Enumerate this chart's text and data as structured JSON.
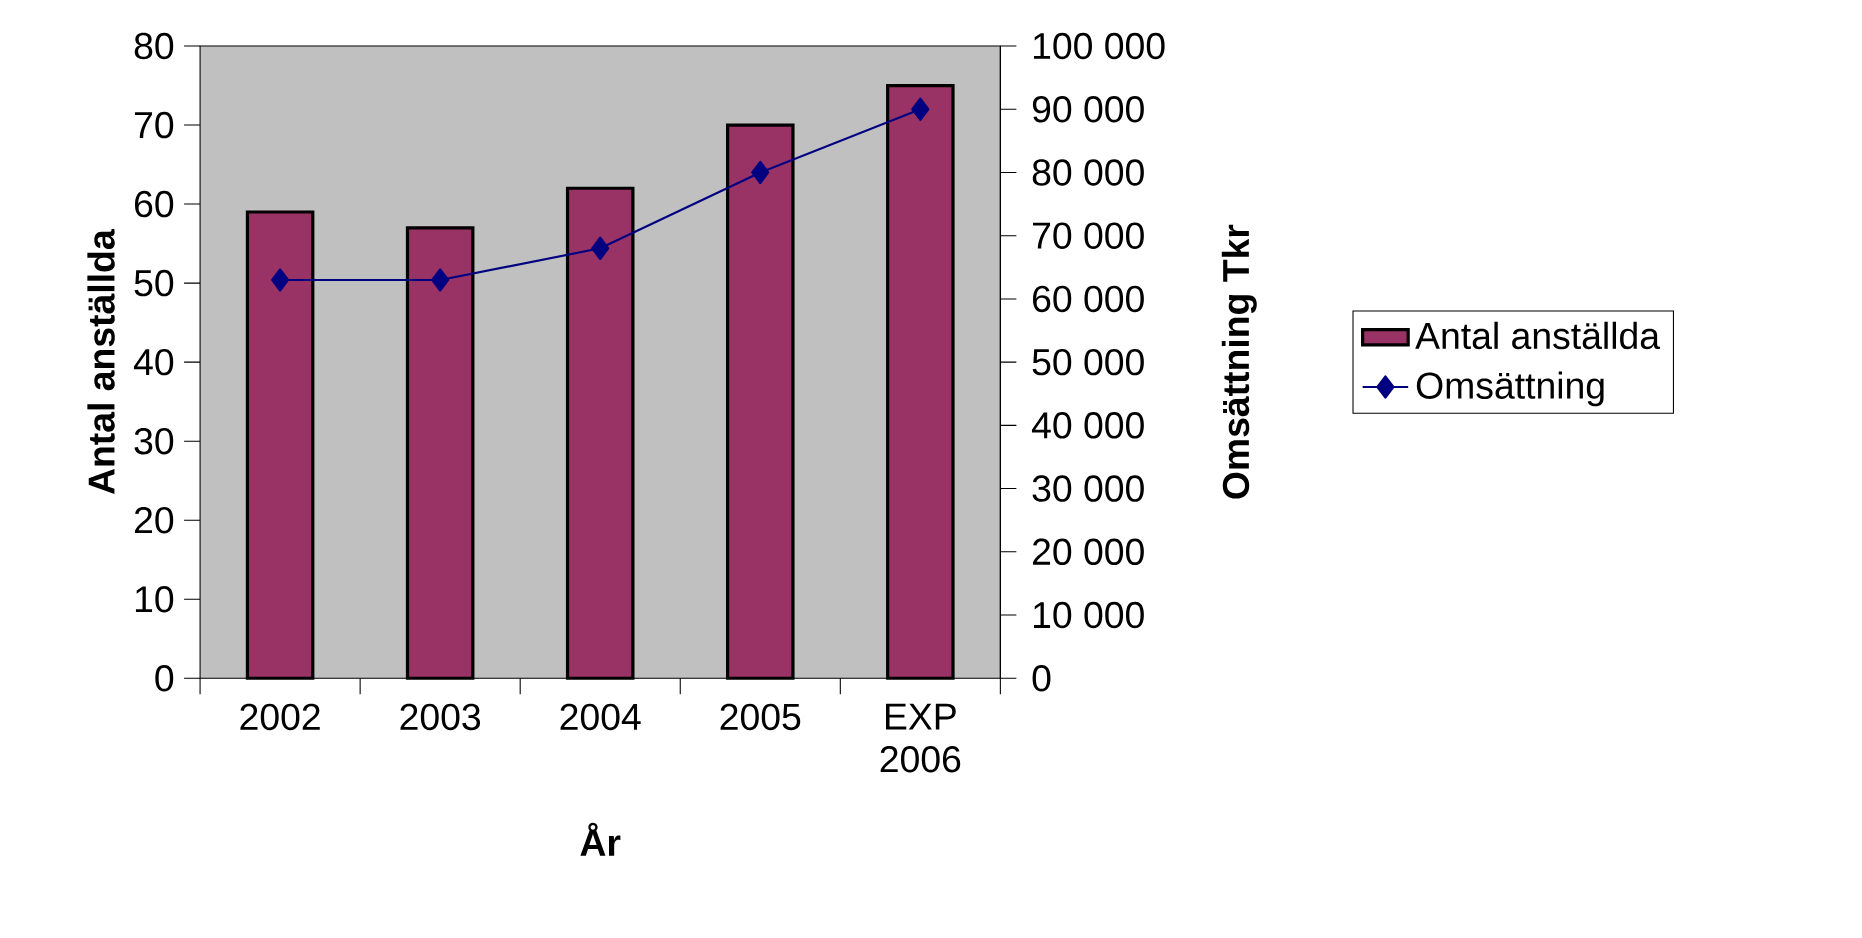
{
  "chart_data": {
    "type": "bar",
    "xlabel": "År",
    "ylabel": "Antal anställda",
    "y2label": "Omsättning Tkr",
    "categories": [
      "2002",
      "2003",
      "2004",
      "2005",
      "EXP 2006"
    ],
    "series": [
      {
        "name": "Antal anställda",
        "color": "#993366",
        "values": [
          59,
          57,
          62,
          70,
          75
        ]
      },
      {
        "name": "Omsättning",
        "type": "line",
        "axis": "y2",
        "color": "#000080",
        "values": [
          63000,
          63000,
          68000,
          80000,
          90000
        ]
      }
    ],
    "marker": "diamond",
    "legend": "right",
    "grid": false,
    "ylim": [
      0,
      80
    ],
    "yticks": [
      0,
      10,
      20,
      30,
      40,
      50,
      60,
      70,
      80
    ],
    "y2lim": [
      0,
      100000
    ],
    "y2ticks": [
      {
        "value": 0,
        "label": "0"
      },
      {
        "value": 10000,
        "label": "10 000"
      },
      {
        "value": 20000,
        "label": "20 000"
      },
      {
        "value": 30000,
        "label": "30 000"
      },
      {
        "value": 40000,
        "label": "40 000"
      },
      {
        "value": 50000,
        "label": "50 000"
      },
      {
        "value": 60000,
        "label": "60 000"
      },
      {
        "value": 70000,
        "label": "70 000"
      },
      {
        "value": 80000,
        "label": "80 000"
      },
      {
        "value": 90000,
        "label": "90 000"
      },
      {
        "value": 100000,
        "label": "100 000"
      }
    ]
  }
}
